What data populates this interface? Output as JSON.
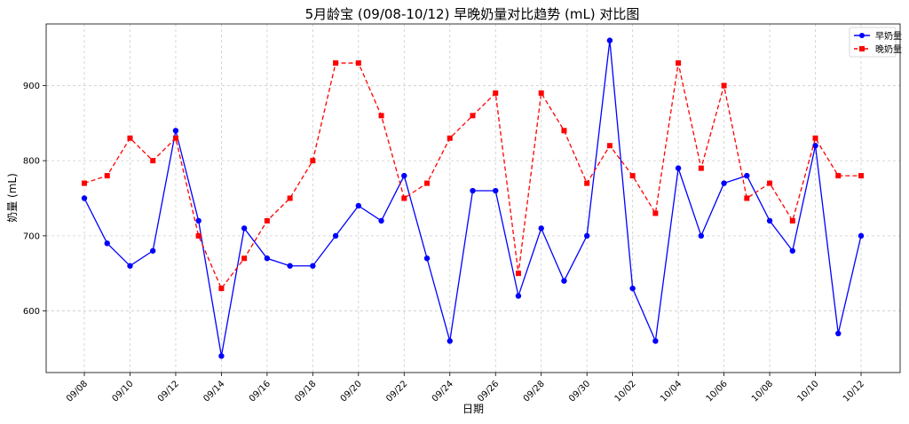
{
  "chart_data": {
    "type": "line",
    "title": "5月龄宝 (09/08-10/12) 早晚奶量对比趋势 (mL) 对比图",
    "xlabel": "日期",
    "ylabel": "奶量 (mL)",
    "ylim": [
      518,
      982
    ],
    "yticks": [
      600,
      700,
      800,
      900
    ],
    "x": [
      "09/08",
      "09/09",
      "09/10",
      "09/11",
      "09/12",
      "09/13",
      "09/14",
      "09/15",
      "09/16",
      "09/17",
      "09/18",
      "09/19",
      "09/20",
      "09/21",
      "09/22",
      "09/23",
      "09/24",
      "09/25",
      "09/26",
      "09/27",
      "09/28",
      "09/29",
      "09/30",
      "10/01",
      "10/02",
      "10/03",
      "10/04",
      "10/05",
      "10/06",
      "10/07",
      "10/08",
      "10/09",
      "10/10",
      "10/11",
      "10/12"
    ],
    "xticks": [
      "09/08",
      "09/10",
      "09/12",
      "09/14",
      "09/16",
      "09/18",
      "09/20",
      "09/22",
      "09/24",
      "09/26",
      "09/28",
      "09/30",
      "10/02",
      "10/04",
      "10/06",
      "10/08",
      "10/10",
      "10/12"
    ],
    "grid": true,
    "legend_position": "top-right",
    "series": [
      {
        "name": "早奶量",
        "color": "#0000ff",
        "style": "solid",
        "marker": "circle",
        "values": [
          750,
          690,
          660,
          680,
          840,
          720,
          540,
          710,
          670,
          660,
          660,
          700,
          740,
          720,
          780,
          670,
          560,
          760,
          760,
          620,
          710,
          640,
          700,
          960,
          630,
          560,
          790,
          700,
          770,
          780,
          720,
          680,
          820,
          570,
          700
        ]
      },
      {
        "name": "晚奶量",
        "color": "#ff0000",
        "style": "dashed",
        "marker": "square",
        "values": [
          770,
          780,
          830,
          800,
          830,
          700,
          630,
          670,
          720,
          750,
          800,
          930,
          930,
          860,
          750,
          770,
          830,
          860,
          890,
          650,
          890,
          840,
          770,
          820,
          780,
          730,
          930,
          790,
          900,
          750,
          770,
          720,
          830,
          780,
          780
        ]
      }
    ]
  }
}
